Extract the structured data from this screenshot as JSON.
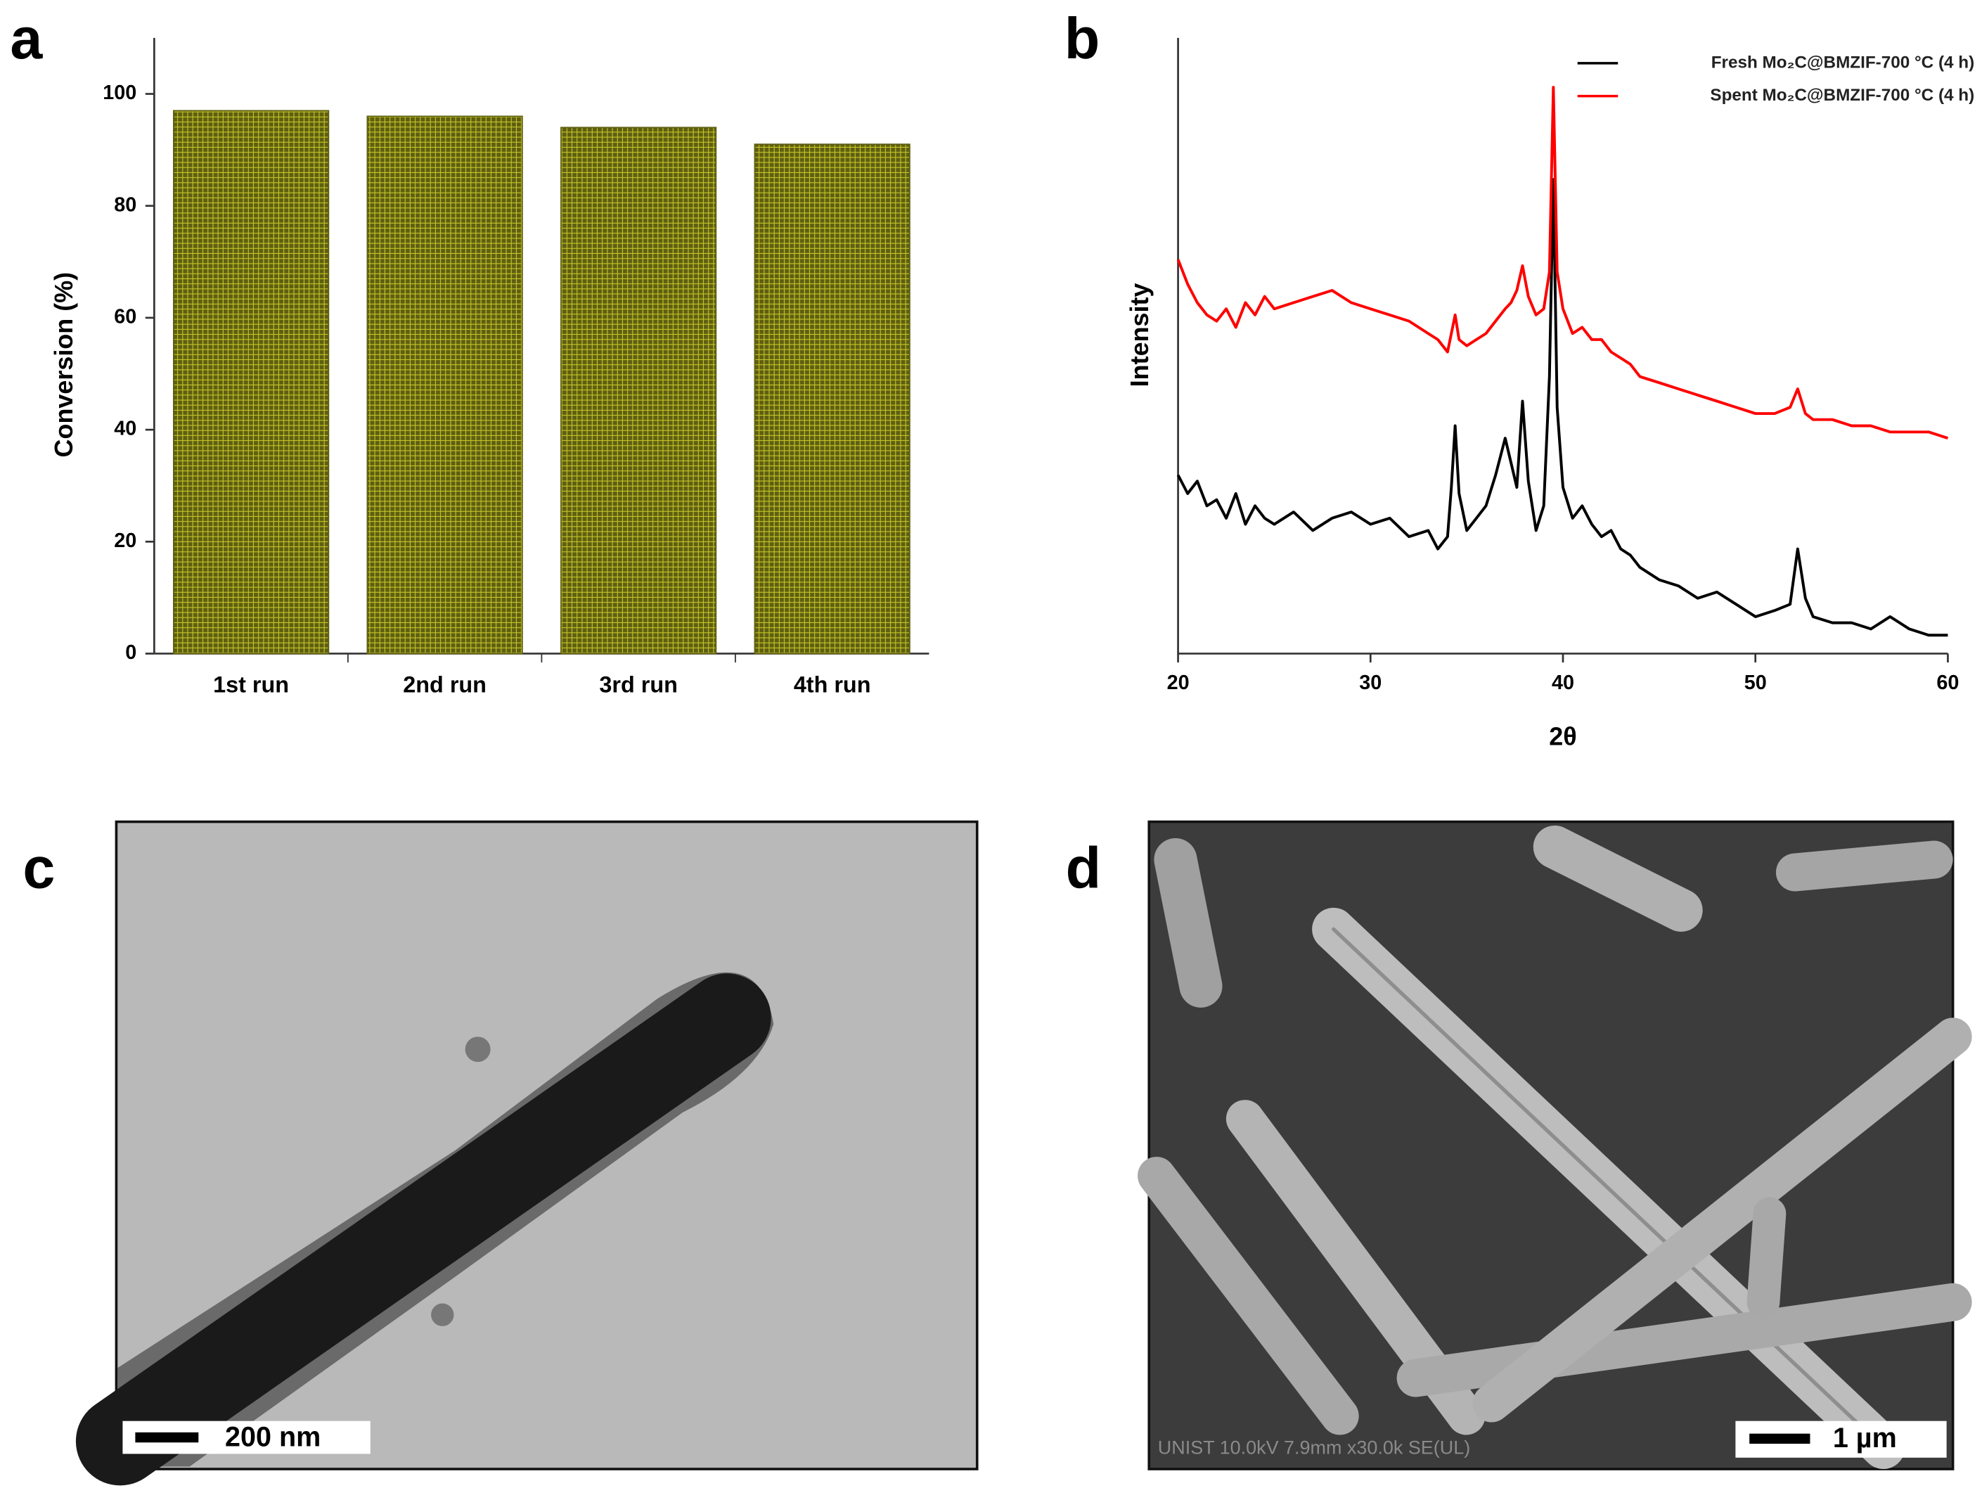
{
  "panel_labels": [
    "a",
    "b",
    "c",
    "d"
  ],
  "panel_c": {
    "scale_bar": "200 nm"
  },
  "panel_d": {
    "scale_bar": "1 µm",
    "info": "UNIST 10.0kV 7.9mm x30.0k SE(UL)"
  },
  "chart_data": [
    {
      "type": "bar",
      "y_label": "Conversion (%)",
      "categories": [
        "1st run",
        "2nd run",
        "3rd run",
        "4th run"
      ],
      "values": [
        97,
        96,
        94,
        91
      ],
      "color": "#5f5f12",
      "ylim": [
        0,
        110
      ],
      "yticks": [
        0,
        20,
        40,
        60,
        80,
        100
      ]
    },
    {
      "type": "line",
      "x_label": "2θ",
      "y_label": "Intensity",
      "legend": "upper right",
      "xlim": [
        20,
        60
      ],
      "xticks": [
        20,
        30,
        40,
        50,
        60
      ],
      "ylim": [
        0,
        100
      ],
      "x": [
        20,
        20.5,
        21,
        21.5,
        22,
        22.5,
        23,
        23.5,
        24,
        24.5,
        25,
        26,
        27,
        28,
        29,
        30,
        31,
        32,
        33,
        33.5,
        34,
        34.2,
        34.4,
        34.6,
        35,
        35.5,
        36,
        36.5,
        37,
        37.3,
        37.6,
        37.9,
        38.2,
        38.6,
        39,
        39.3,
        39.5,
        39.7,
        40,
        40.5,
        41,
        41.5,
        42,
        42.5,
        43,
        43.5,
        44,
        45,
        46,
        47,
        48,
        49,
        50,
        51,
        51.8,
        52.2,
        52.6,
        53,
        54,
        55,
        56,
        57,
        58,
        59,
        60
      ],
      "series": [
        {
          "name": "Fresh Mo₂C@BMZIF-700 °C (4 h)",
          "color": "#000000",
          "values": [
            29,
            26,
            28,
            24,
            25,
            22,
            26,
            21,
            24,
            22,
            21,
            23,
            20,
            22,
            23,
            21,
            22,
            19,
            20,
            17,
            19,
            27,
            37,
            26,
            20,
            22,
            24,
            29,
            35,
            31,
            27,
            41,
            28,
            20,
            24,
            45,
            77,
            40,
            27,
            22,
            24,
            21,
            19,
            20,
            17,
            16,
            14,
            12,
            11,
            9,
            10,
            8,
            6,
            7,
            8,
            17,
            9,
            6,
            5,
            5,
            4,
            6,
            4,
            3,
            3
          ]
        },
        {
          "name": "Spent Mo₂C@BMZIF-700 °C (4 h)",
          "color": "#ff0000",
          "values": [
            64,
            60,
            57,
            55,
            54,
            56,
            53,
            57,
            55,
            58,
            56,
            57,
            58,
            59,
            57,
            56,
            55,
            54,
            52,
            51,
            49,
            52,
            55,
            51,
            50,
            51,
            52,
            54,
            56,
            57,
            59,
            63,
            58,
            55,
            56,
            62,
            92,
            62,
            56,
            52,
            53,
            51,
            51,
            49,
            48,
            47,
            45,
            44,
            43,
            42,
            41,
            40,
            39,
            39,
            40,
            43,
            39,
            38,
            38,
            37,
            37,
            36,
            36,
            36,
            35
          ]
        }
      ]
    }
  ]
}
